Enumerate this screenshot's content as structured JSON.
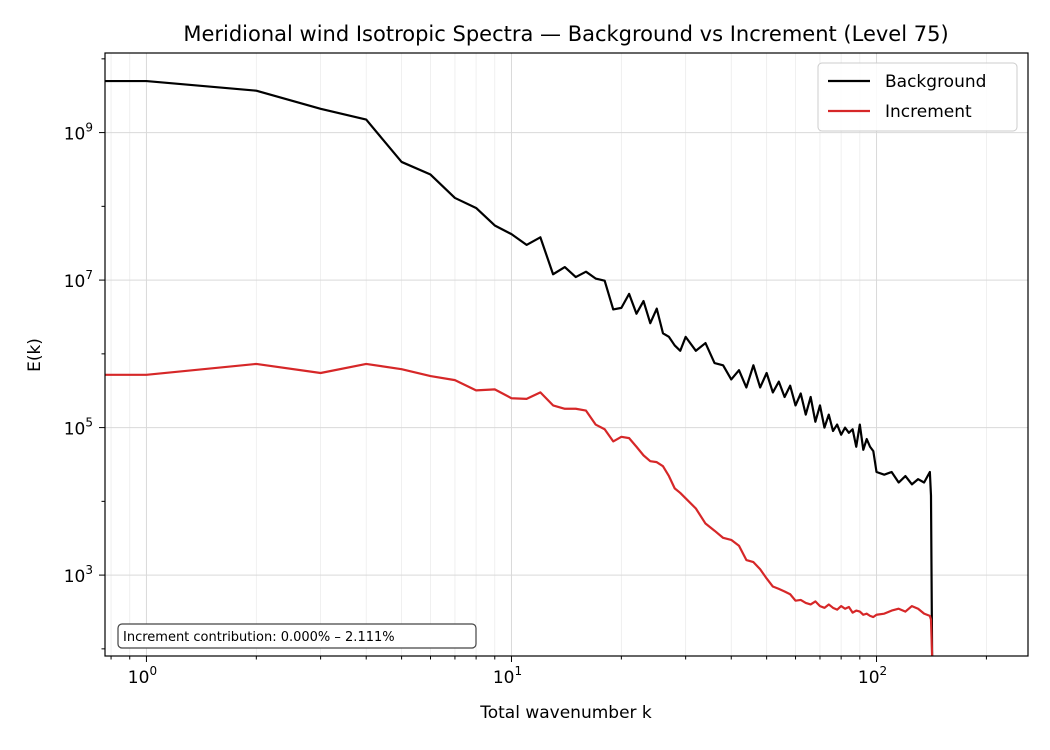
{
  "chart_data": {
    "type": "line",
    "title": "Meridional wind Isotropic Spectra — Background vs Increment (Level 75)",
    "xlabel": "Total wavenumber k",
    "ylabel": "E(k)",
    "xscale": "log",
    "yscale": "log",
    "xlim": [
      0.77,
      260
    ],
    "ylim": [
      80,
      12000000000
    ],
    "xticks": [
      {
        "base": "10",
        "exp": "0",
        "value": 1
      },
      {
        "base": "10",
        "exp": "1",
        "value": 10
      },
      {
        "base": "10",
        "exp": "2",
        "value": 100
      }
    ],
    "yticks": [
      {
        "base": "10",
        "exp": "3",
        "value": 1000
      },
      {
        "base": "10",
        "exp": "5",
        "value": 100000
      },
      {
        "base": "10",
        "exp": "7",
        "value": 10000000
      },
      {
        "base": "10",
        "exp": "9",
        "value": 1000000000
      }
    ],
    "grid": true,
    "legend": "top-right",
    "series": [
      {
        "name": "Background",
        "color": "#000000",
        "x": [
          0,
          1,
          2,
          3,
          4,
          5,
          6,
          7,
          8,
          9,
          10,
          11,
          12,
          13,
          14,
          15,
          16,
          17,
          18,
          19,
          20,
          21,
          22,
          23,
          24,
          25,
          26,
          27,
          28,
          29,
          30,
          32,
          34,
          36,
          38,
          40,
          42,
          44,
          46,
          48,
          50,
          52,
          54,
          56,
          58,
          60,
          62,
          64,
          66,
          68,
          70,
          72,
          74,
          76,
          78,
          80,
          82,
          84,
          86,
          88,
          90,
          92,
          94,
          96,
          98,
          100,
          105,
          110,
          115,
          120,
          125,
          130,
          135,
          140,
          141,
          142
        ],
        "y": [
          5000000000,
          5000000000,
          3700000000,
          2100000000,
          1500000000,
          400000000,
          270000000,
          130000000,
          95000000,
          55000000,
          42000000,
          30000000,
          38000000,
          12000000,
          15000000,
          11000000,
          13000000,
          10500000,
          9800000,
          4000000,
          4200000,
          6500000,
          3500000,
          5200000,
          2600000,
          4100000,
          1900000,
          1700000,
          1300000,
          1100000,
          1700000,
          1100000,
          1400000,
          750000,
          700000,
          450000,
          600000,
          350000,
          700000,
          350000,
          550000,
          300000,
          420000,
          260000,
          370000,
          200000,
          290000,
          150000,
          260000,
          120000,
          200000,
          100000,
          150000,
          90000,
          110000,
          80000,
          100000,
          85000,
          95000,
          55000,
          110000,
          50000,
          70000,
          55000,
          48000,
          25000,
          23000,
          25000,
          18000,
          22000,
          17000,
          20000,
          18000,
          25000,
          12000,
          80
        ]
      },
      {
        "name": "Increment",
        "color": "#d62728",
        "x": [
          0,
          1,
          2,
          3,
          4,
          5,
          6,
          7,
          8,
          9,
          10,
          11,
          12,
          13,
          14,
          15,
          16,
          17,
          18,
          19,
          20,
          21,
          22,
          23,
          24,
          25,
          26,
          27,
          28,
          29,
          30,
          32,
          34,
          36,
          38,
          40,
          42,
          44,
          46,
          48,
          50,
          52,
          54,
          56,
          58,
          60,
          62,
          64,
          66,
          68,
          70,
          72,
          74,
          76,
          78,
          80,
          82,
          84,
          86,
          88,
          90,
          92,
          94,
          96,
          98,
          100,
          105,
          110,
          115,
          120,
          125,
          130,
          135,
          140,
          141,
          142
        ],
        "y": [
          520000,
          520000,
          730000,
          550000,
          730000,
          620000,
          500000,
          440000,
          320000,
          330000,
          250000,
          245000,
          300000,
          200000,
          180000,
          180000,
          170000,
          110000,
          95000,
          65000,
          75000,
          72000,
          55000,
          42000,
          35000,
          34000,
          30000,
          22000,
          15000,
          13000,
          11000,
          8000,
          5000,
          4000,
          3200,
          3000,
          2500,
          1600,
          1500,
          1200,
          900,
          700,
          650,
          600,
          550,
          450,
          460,
          420,
          400,
          440,
          380,
          360,
          400,
          360,
          340,
          380,
          350,
          370,
          310,
          330,
          320,
          290,
          300,
          280,
          270,
          290,
          300,
          330,
          350,
          320,
          380,
          350,
          300,
          280,
          250,
          80
        ]
      }
    ],
    "annotation": "Increment contribution: 0.000% – 2.111%"
  }
}
